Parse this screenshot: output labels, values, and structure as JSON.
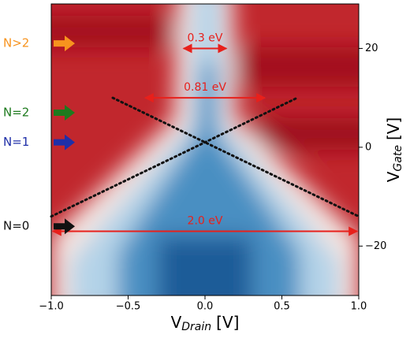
{
  "chart_data": {
    "type": "heatmap",
    "xlabel": {
      "main": "V",
      "sub": "Drain",
      "unit": "[V]"
    },
    "ylabel": {
      "main": "V",
      "sub": "Gate",
      "unit": "[V]"
    },
    "xlim": [
      -1,
      1
    ],
    "ylim": [
      -30,
      29
    ],
    "xticks": [
      {
        "value": -1,
        "label": "−1.0"
      },
      {
        "value": -0.5,
        "label": "−0.5"
      },
      {
        "value": 0,
        "label": "0.0"
      },
      {
        "value": 0.5,
        "label": "0.5"
      },
      {
        "value": 1,
        "label": "1.0"
      }
    ],
    "yticks": [
      {
        "value": -20,
        "label": "−20"
      },
      0,
      20
    ],
    "spans": [
      {
        "label": "0.3 eV",
        "x": [
          -0.15,
          0.15
        ],
        "y": 20,
        "color": "#e8201b"
      },
      {
        "label": "0.81 eV",
        "x": [
          -0.4,
          0.4
        ],
        "y": 10,
        "color": "#e8201b"
      },
      {
        "label": "2.0 eV",
        "x": [
          -1,
          1
        ],
        "y": -17,
        "color": "#e8201b"
      }
    ],
    "lines": [
      {
        "x": [
          -0.6,
          1
        ],
        "y": [
          10,
          -14
        ],
        "color": "#111"
      },
      {
        "x": [
          -1,
          0.6
        ],
        "y": [
          -14,
          10
        ],
        "color": "#111"
      }
    ],
    "levels": [
      {
        "label": "N>2",
        "y": 21,
        "color": "#f7931e"
      },
      {
        "label": "N=2",
        "y": 7,
        "color": "#1e7a1e"
      },
      {
        "label": "N=1",
        "y": 1,
        "color": "#1f2fa8"
      },
      {
        "label": "N=0",
        "y": -16,
        "color": "#111111"
      }
    ]
  }
}
